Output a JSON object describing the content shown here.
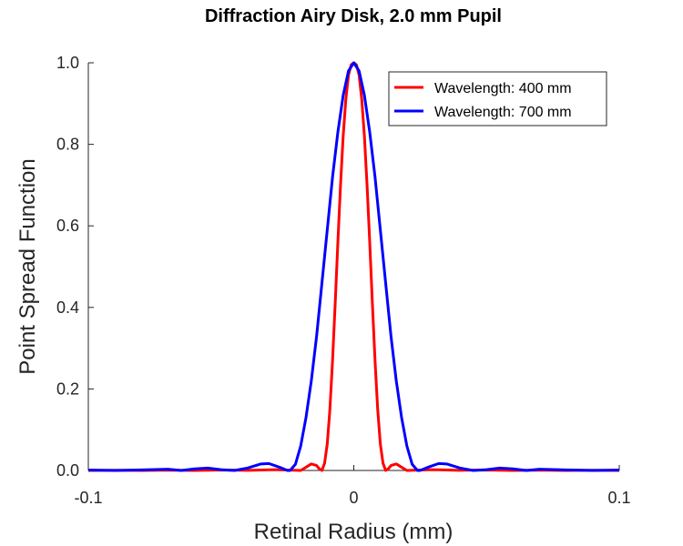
{
  "chart_data": {
    "type": "line",
    "title": "Diffraction Airy Disk, 2.0 mm Pupil",
    "xlabel": "Retinal Radius (mm)",
    "ylabel": "Point Spread Function",
    "xlim": [
      -0.1,
      0.1
    ],
    "ylim": [
      0,
      1
    ],
    "x_ticks": [
      -0.1,
      0,
      0.1
    ],
    "x_tick_labels": [
      "-0.1",
      "0",
      "0.1"
    ],
    "y_ticks": [
      0,
      0.2,
      0.4,
      0.6,
      0.8,
      1.0
    ],
    "y_tick_labels": [
      "0.0",
      "0.2",
      "0.4",
      "0.6",
      "0.8",
      "1.0"
    ],
    "grid": false,
    "legend_position": "top-right",
    "series": [
      {
        "name": "Wavelength: 400 mm",
        "color": "#ff0000",
        "x": [
          -0.1,
          -0.09,
          -0.08,
          -0.07,
          -0.06,
          -0.05,
          -0.04,
          -0.03,
          -0.025,
          -0.02,
          -0.018,
          -0.016,
          -0.014,
          -0.013,
          -0.012,
          -0.011,
          -0.01,
          -0.009,
          -0.008,
          -0.007,
          -0.006,
          -0.005,
          -0.004,
          -0.003,
          -0.002,
          -0.001,
          0,
          0.001,
          0.002,
          0.003,
          0.004,
          0.005,
          0.006,
          0.007,
          0.008,
          0.009,
          0.01,
          0.011,
          0.012,
          0.013,
          0.014,
          0.016,
          0.018,
          0.02,
          0.025,
          0.03,
          0.04,
          0.05,
          0.06,
          0.07,
          0.08,
          0.09,
          0.1
        ],
        "y": [
          0.0,
          0.0005,
          0.0,
          0.0008,
          0.0,
          0.0012,
          0.0004,
          0.002,
          0.001,
          0.0,
          0.008,
          0.016,
          0.012,
          0.004,
          0.0,
          0.018,
          0.065,
          0.15,
          0.27,
          0.41,
          0.56,
          0.7,
          0.82,
          0.91,
          0.97,
          0.995,
          1.0,
          0.995,
          0.97,
          0.91,
          0.82,
          0.7,
          0.56,
          0.41,
          0.27,
          0.15,
          0.065,
          0.018,
          0.0,
          0.004,
          0.012,
          0.016,
          0.008,
          0.0,
          0.001,
          0.002,
          0.0004,
          0.0012,
          0.0,
          0.0008,
          0.0,
          0.0005,
          0.0
        ]
      },
      {
        "name": "Wavelength: 700 mm",
        "color": "#0000ff",
        "x": [
          -0.1,
          -0.09,
          -0.08,
          -0.07,
          -0.065,
          -0.06,
          -0.055,
          -0.05,
          -0.045,
          -0.04,
          -0.035,
          -0.032,
          -0.028,
          -0.025,
          -0.024,
          -0.022,
          -0.02,
          -0.018,
          -0.016,
          -0.014,
          -0.012,
          -0.01,
          -0.008,
          -0.006,
          -0.004,
          -0.002,
          0,
          0.002,
          0.004,
          0.006,
          0.008,
          0.01,
          0.012,
          0.014,
          0.016,
          0.018,
          0.02,
          0.022,
          0.024,
          0.025,
          0.028,
          0.032,
          0.035,
          0.04,
          0.045,
          0.05,
          0.055,
          0.06,
          0.065,
          0.07,
          0.08,
          0.09,
          0.1
        ],
        "y": [
          0.001,
          0.0,
          0.0015,
          0.003,
          0.0,
          0.004,
          0.006,
          0.002,
          0.0,
          0.006,
          0.016,
          0.017,
          0.008,
          0.0,
          0.0,
          0.015,
          0.06,
          0.13,
          0.22,
          0.33,
          0.46,
          0.59,
          0.72,
          0.83,
          0.92,
          0.98,
          1.0,
          0.98,
          0.92,
          0.83,
          0.72,
          0.59,
          0.46,
          0.33,
          0.22,
          0.13,
          0.06,
          0.015,
          0.0,
          0.0,
          0.008,
          0.017,
          0.016,
          0.006,
          0.0,
          0.002,
          0.006,
          0.004,
          0.0,
          0.003,
          0.0015,
          0.0,
          0.001
        ]
      }
    ]
  }
}
